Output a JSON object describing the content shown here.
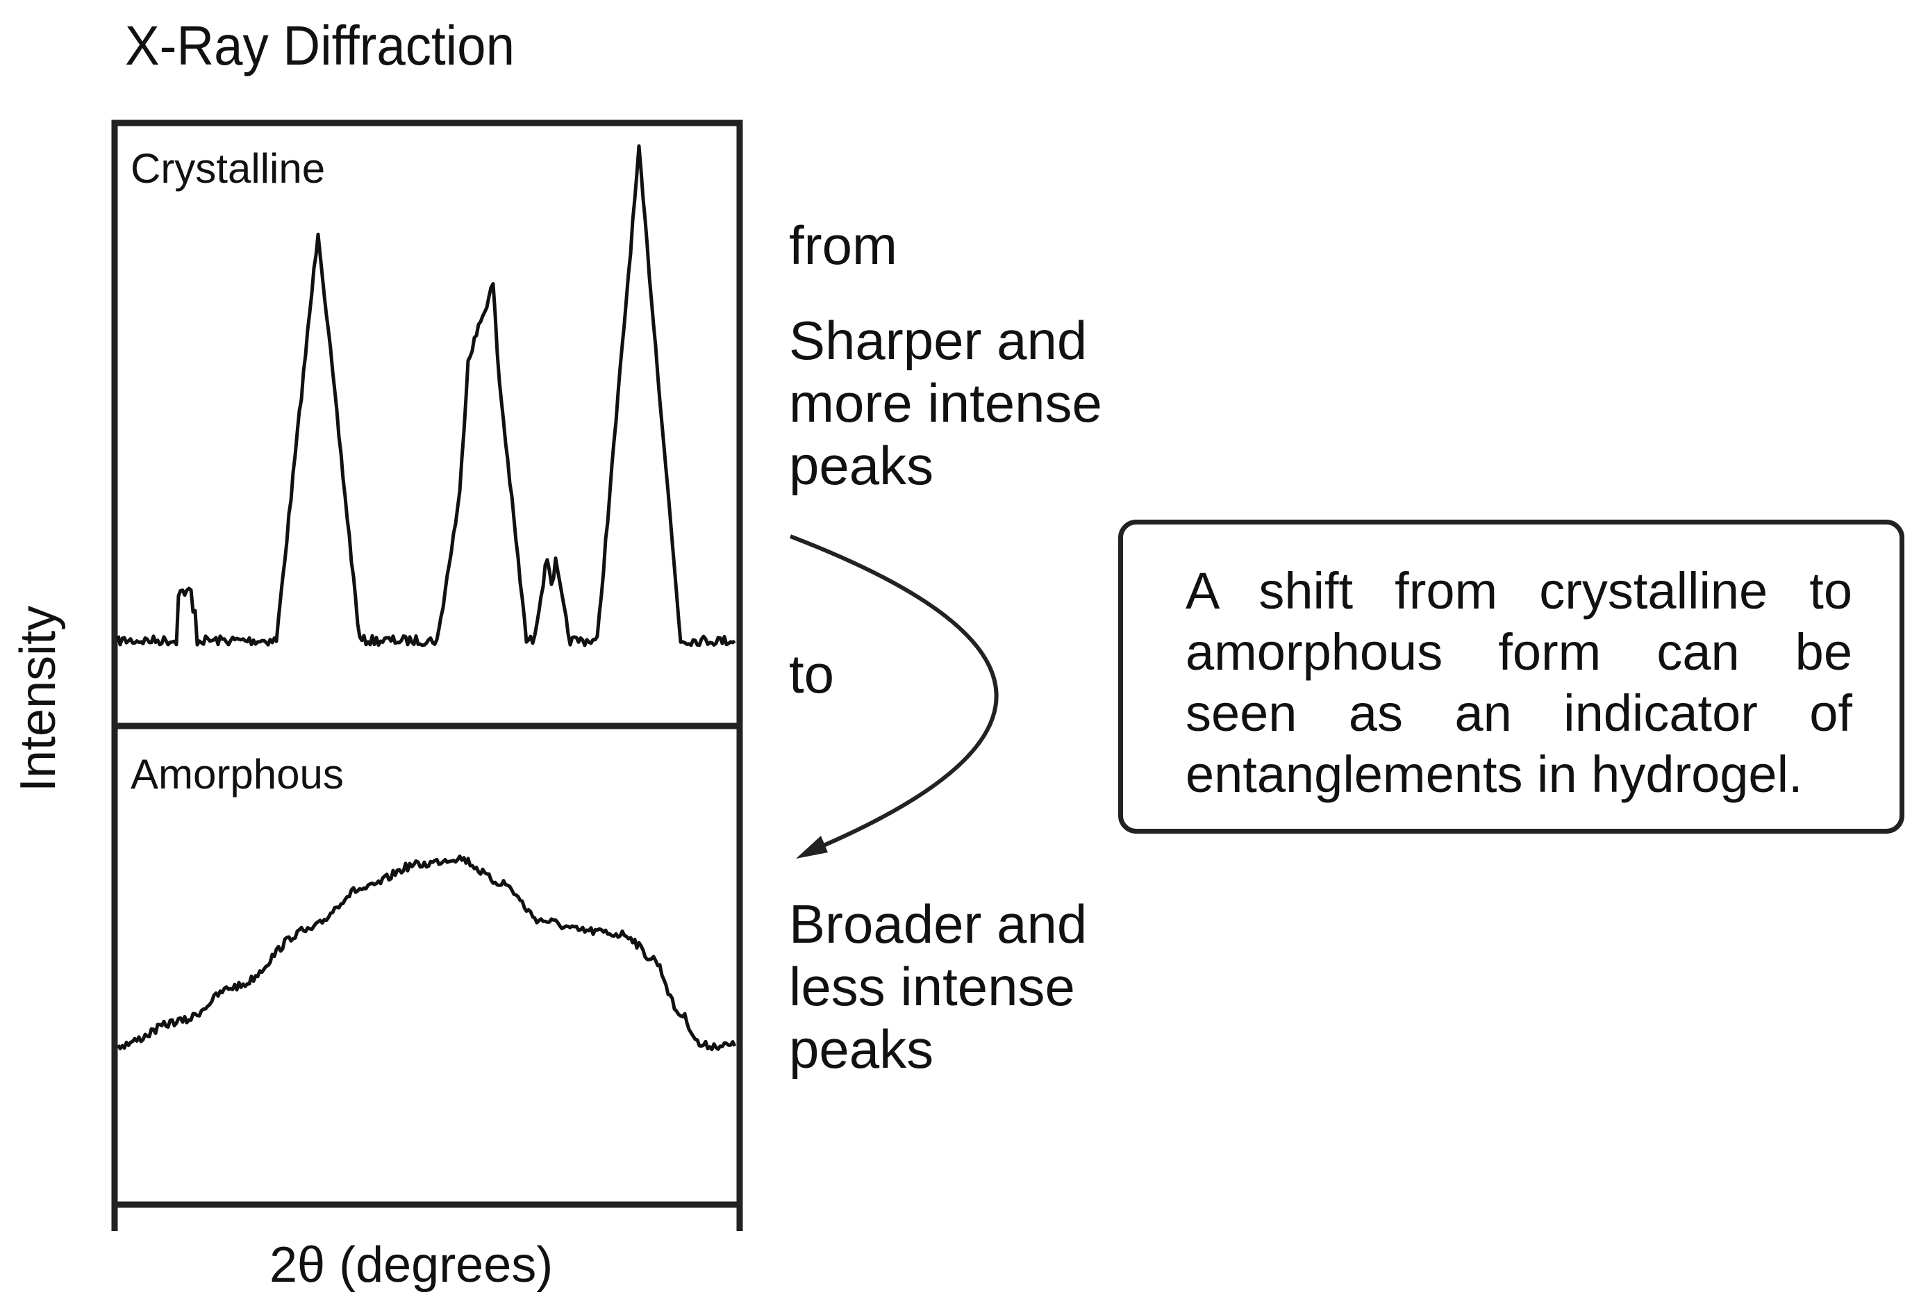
{
  "title": "X-Ray Diffraction",
  "y_axis_label": "Intensity",
  "x_axis_label": "2θ (degrees)",
  "panels": {
    "crystalline_label": "Crystalline",
    "amorphous_label": "Amorphous"
  },
  "transition": {
    "from_label": "from",
    "from_description": "Sharper and\nmore intense\npeaks",
    "to_label": "to",
    "to_description": "Broader and\nless intense\npeaks"
  },
  "callout": {
    "text": "A shift from crystalline to amorphous form can be seen as an indicator of entanglements in hydrogel."
  },
  "colors": {
    "line": "#111111",
    "frame": "#222222",
    "background": "#ffffff"
  }
}
